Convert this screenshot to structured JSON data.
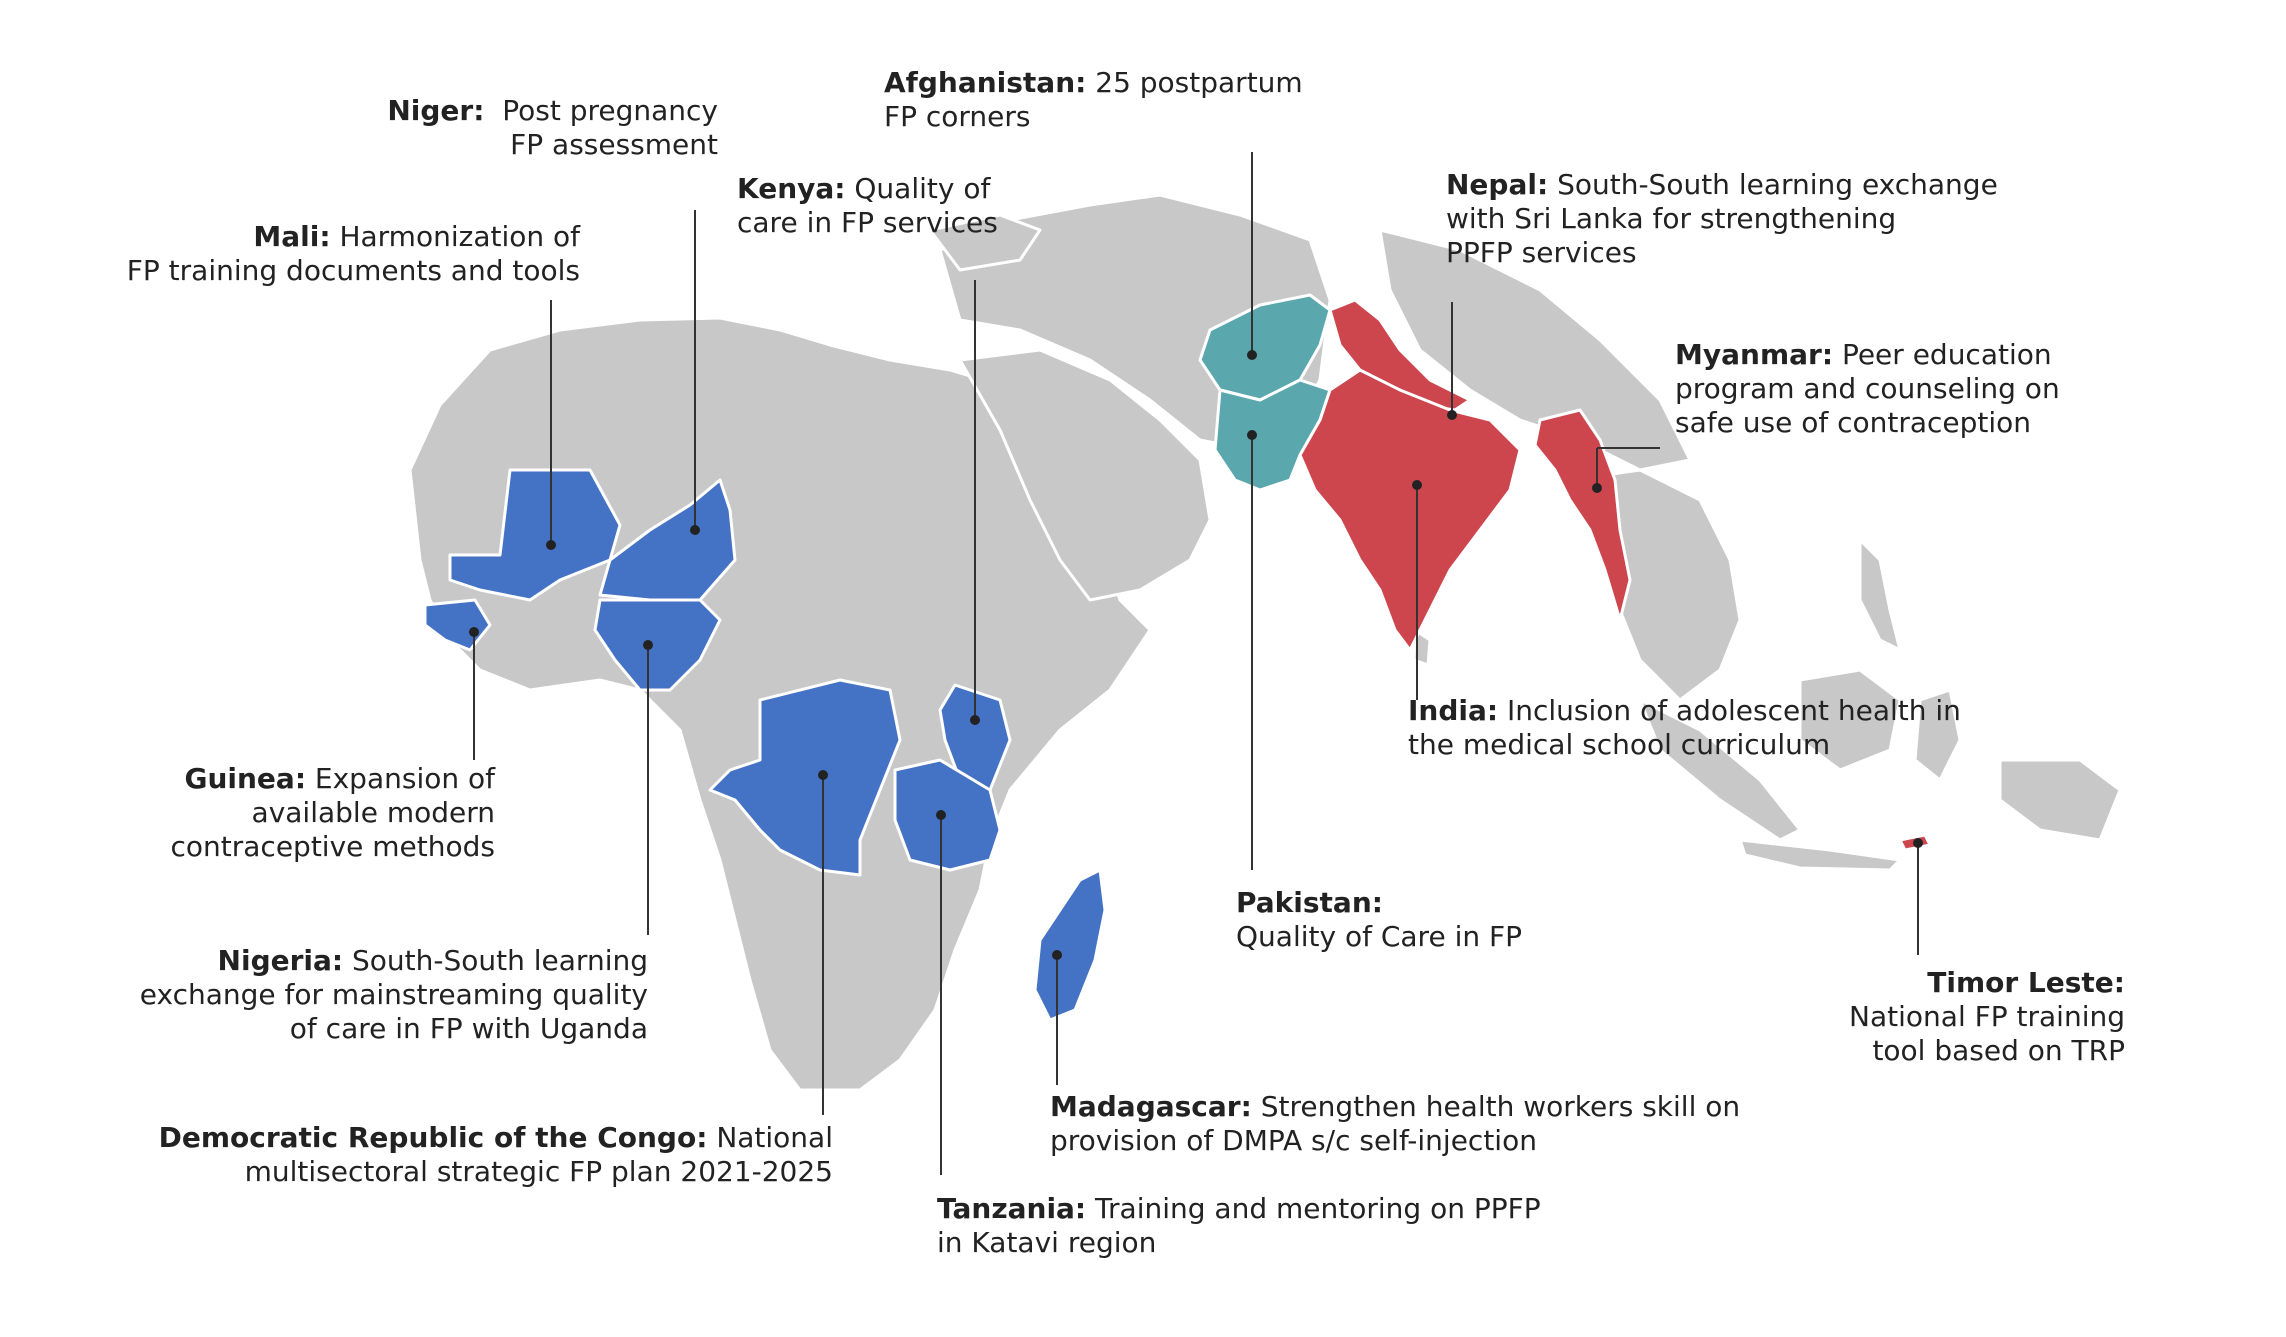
{
  "colors": {
    "other_country": "#c8c8c8",
    "border": "#ffffff",
    "africa_highlight": "#4472c4",
    "afghanistan_pakistan": "#5aa7ae",
    "south_asia_highlight": "#cd464e",
    "leader_line": "#333333"
  },
  "callouts": {
    "niger": {
      "country": "Niger:",
      "line1": "Post pregnancy",
      "line2": "FP assessment"
    },
    "mali": {
      "country": "Mali:",
      "line1": "Harmonization of",
      "line2": "FP training  documents and tools"
    },
    "afghanistan": {
      "country": "Afghanistan:",
      "line1": "25 postpartum",
      "line2": "FP corners"
    },
    "kenya": {
      "country": "Kenya:",
      "line1": "Quality of",
      "line2": "care in FP services"
    },
    "nepal": {
      "country": "Nepal:",
      "line1": "South-South learning exchange",
      "line2": "with Sri Lanka for strengthening",
      "line3": "PPFP services"
    },
    "myanmar": {
      "country": "Myanmar:",
      "line1": "Peer education",
      "line2": "program and counseling on",
      "line3": "safe use of contraception"
    },
    "india": {
      "country": "India:",
      "line1": "Inclusion of adolescent health in",
      "line2": "the medical school curriculum"
    },
    "guinea": {
      "country": "Guinea:",
      "line1": "Expansion of",
      "line2": "available modern",
      "line3": "contraceptive methods"
    },
    "pakistan": {
      "country": "Pakistan:",
      "line1": "Quality of Care in FP"
    },
    "timor": {
      "country": "Timor Leste:",
      "line1": "National FP training",
      "line2": "tool based on TRP"
    },
    "nigeria": {
      "country": "Nigeria:",
      "line1": "South-South learning",
      "line2": "exchange for mainstreaming quality",
      "line3": "of care in FP with Uganda"
    },
    "madagascar": {
      "country": "Madagascar:",
      "line1": "Strengthen health workers skill on",
      "line2": "provision of DMPA s/c self-injection"
    },
    "drc": {
      "country": "Democratic Republic of the Congo:",
      "line1": "National",
      "line2": "multisectoral strategic FP plan 2021-2025"
    },
    "tanzania": {
      "country": "Tanzania:",
      "line1": "Training and mentoring on PPFP",
      "line2": "in Katavi region"
    }
  }
}
